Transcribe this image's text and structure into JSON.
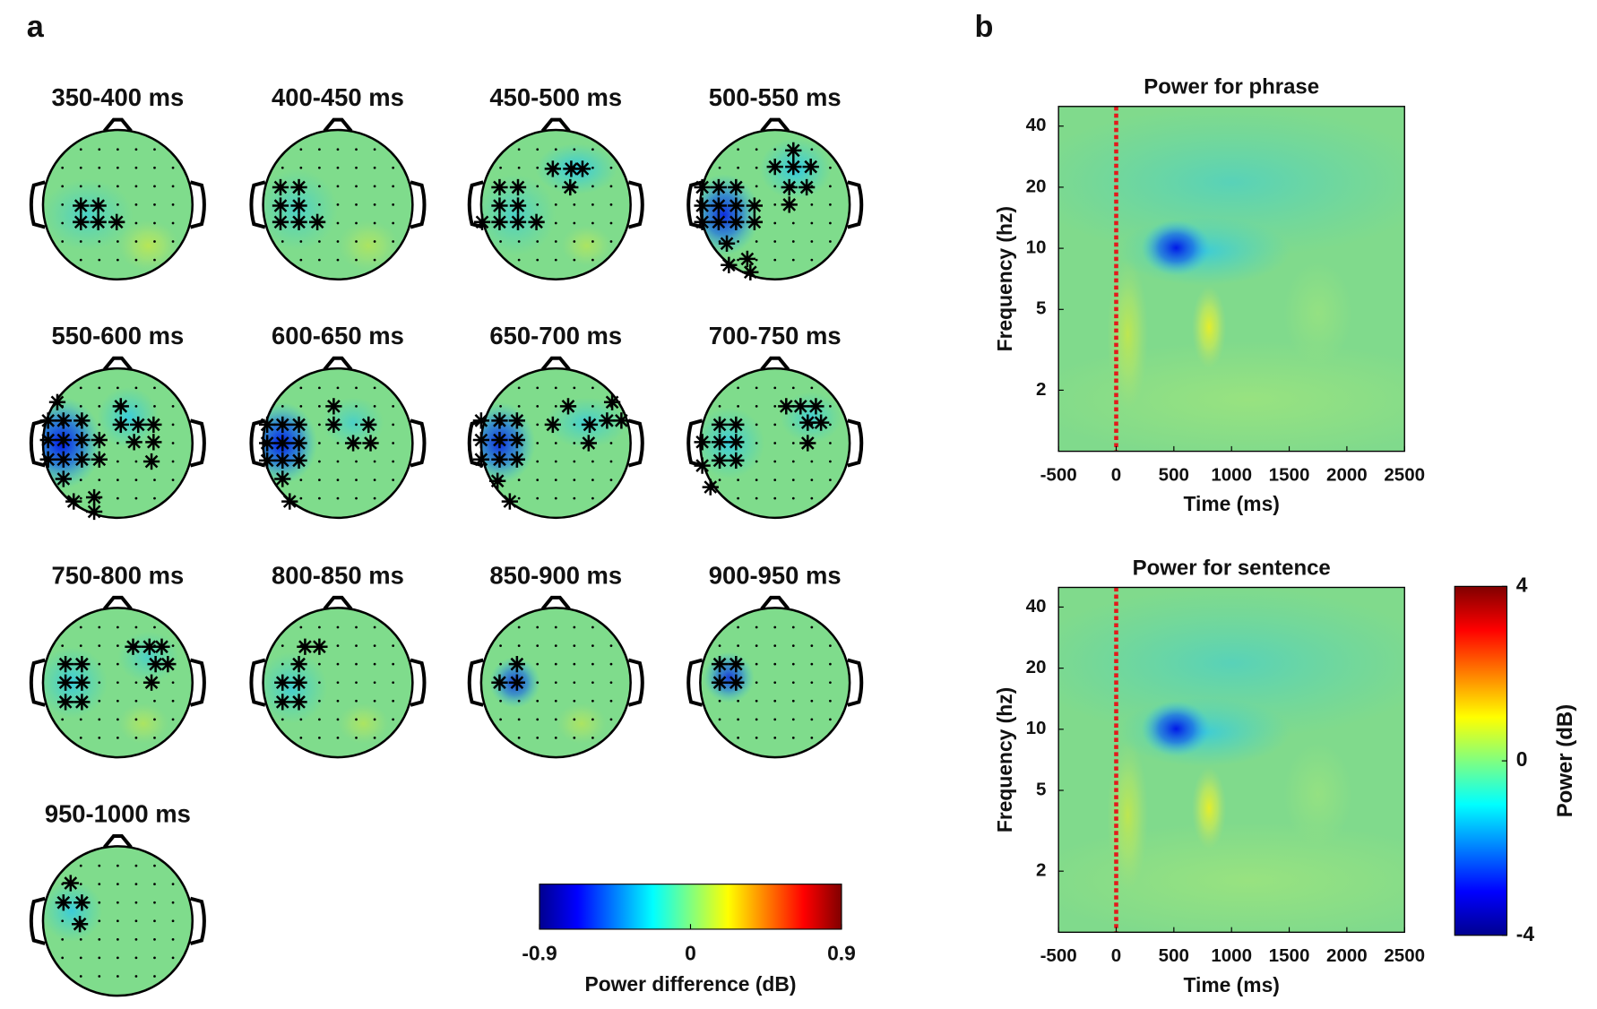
{
  "panel_labels": [
    "a",
    "b"
  ],
  "chart_data": [
    {
      "type": "topomap",
      "titles": [
        "350-400 ms",
        "400-450 ms",
        "450-500 ms",
        "500-550 ms",
        "550-600 ms",
        "600-650 ms",
        "650-700 ms",
        "700-750 ms",
        "750-800 ms",
        "800-850 ms",
        "850-900 ms",
        "900-950 ms",
        "950-1000 ms"
      ],
      "colorbar_label": "Power difference (dB)",
      "clim": [
        -0.9,
        0.9
      ],
      "cticks": [
        -0.9,
        0,
        0.9
      ]
    },
    {
      "type": "heatmap",
      "title": "Power for phrase",
      "xlabel": "Time (ms)",
      "ylabel": "Frequency (hz)",
      "xlim": [
        -500,
        2500
      ],
      "xticks": [
        -500,
        0,
        500,
        1000,
        1500,
        2000,
        2500
      ],
      "ylim": [
        1,
        50
      ],
      "yticks": [
        2,
        5,
        10,
        20,
        40
      ],
      "log_y": true,
      "vline": 0,
      "vline_color": "#e31a1c"
    },
    {
      "type": "heatmap",
      "title": "Power for sentence",
      "xlabel": "Time (ms)",
      "ylabel": "Frequency (hz)",
      "xlim": [
        -500,
        2500
      ],
      "xticks": [
        -500,
        0,
        500,
        1000,
        1500,
        2000,
        2500
      ],
      "ylim": [
        1,
        50
      ],
      "yticks": [
        2,
        5,
        10,
        20,
        40
      ],
      "log_y": true,
      "vline": 0,
      "vline_color": "#e31a1c"
    },
    {
      "type": "colorbar",
      "label": "Power (dB)",
      "clim": [
        -4,
        4
      ],
      "cticks": [
        -4,
        0,
        4
      ]
    }
  ]
}
